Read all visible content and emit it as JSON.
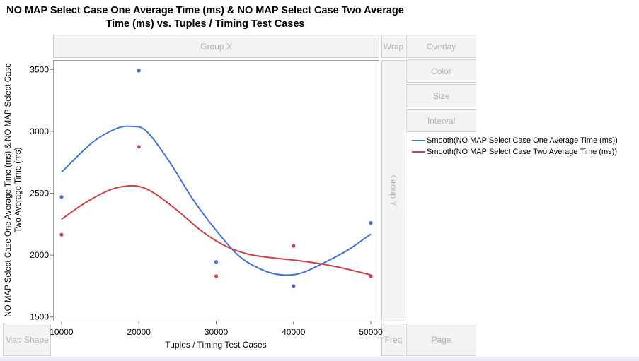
{
  "title": {
    "line1": "NO MAP Select Case One Average Time (ms) & NO MAP Select Case Two Average",
    "line2": "Time (ms) vs. Tuples / Timing Test Cases"
  },
  "zones": {
    "group_x": "Group X",
    "wrap": "Wrap",
    "overlay": "Overlay",
    "color": "Color",
    "size": "Size",
    "interval": "Interval",
    "group_y": "Group Y",
    "map_shape": "Map Shape",
    "freq": "Freq",
    "page": "Page"
  },
  "colors": {
    "series1": "#4472d4",
    "series2": "#c9424c"
  },
  "chart_data": {
    "type": "scatter",
    "title": "NO MAP Select Case One Average Time (ms) & NO MAP Select Case Two Average Time (ms) vs. Tuples / Timing Test Cases",
    "xlabel": "Tuples / Timing Test Cases",
    "ylabel_line1": "NO MAP Select Case One Average Time (ms) & NO MAP Select Case",
    "ylabel_line2": "Two Average Time (ms)",
    "xlim": [
      9000,
      51000
    ],
    "ylim": [
      1470,
      3570
    ],
    "x_ticks": [
      10000,
      20000,
      30000,
      40000,
      50000
    ],
    "y_ticks": [
      1500,
      2000,
      2500,
      3000,
      3500
    ],
    "x": [
      10000,
      20000,
      30000,
      40000,
      50000
    ],
    "series": [
      {
        "name": "NO MAP Select Case One Average Time (ms)",
        "values": [
          2470,
          3490,
          1945,
          1750,
          2260
        ],
        "smooth": [
          [
            10000,
            2670
          ],
          [
            14000,
            2910
          ],
          [
            17000,
            3020
          ],
          [
            19000,
            3040
          ],
          [
            21000,
            3000
          ],
          [
            24000,
            2750
          ],
          [
            27000,
            2450
          ],
          [
            30000,
            2200
          ],
          [
            33000,
            1990
          ],
          [
            36000,
            1880
          ],
          [
            38500,
            1840
          ],
          [
            41000,
            1855
          ],
          [
            44000,
            1940
          ],
          [
            47000,
            2040
          ],
          [
            50000,
            2170
          ]
        ]
      },
      {
        "name": "NO MAP Select Case Two Average Time (ms)",
        "values": [
          2165,
          2875,
          1830,
          2075,
          1830
        ],
        "smooth": [
          [
            10000,
            2290
          ],
          [
            13000,
            2420
          ],
          [
            16000,
            2520
          ],
          [
            18000,
            2555
          ],
          [
            20000,
            2555
          ],
          [
            22000,
            2500
          ],
          [
            25000,
            2360
          ],
          [
            28000,
            2200
          ],
          [
            31000,
            2080
          ],
          [
            34000,
            2010
          ],
          [
            37000,
            1980
          ],
          [
            40000,
            1960
          ],
          [
            43000,
            1935
          ],
          [
            46000,
            1900
          ],
          [
            50000,
            1840
          ]
        ]
      }
    ],
    "legend": [
      "Smooth(NO MAP Select Case One Average Time (ms))",
      "Smooth(NO MAP Select Case Two Average Time (ms))"
    ],
    "legend_position": "right",
    "grid": false
  }
}
